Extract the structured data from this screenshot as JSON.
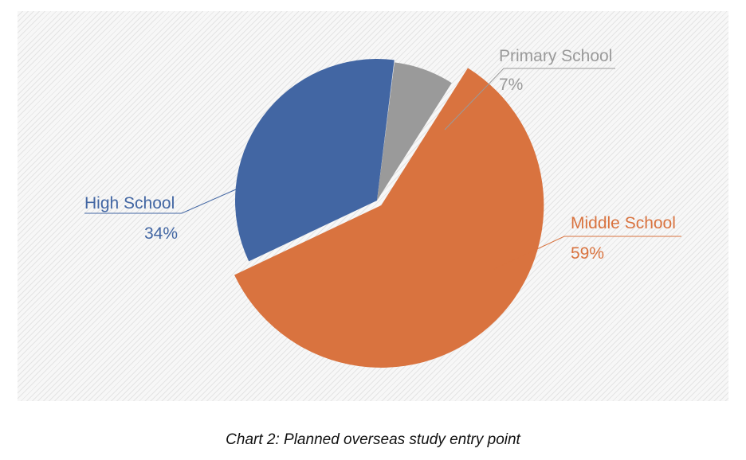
{
  "caption": "Chart 2: Planned overseas study entry point",
  "chart_data": {
    "type": "pie",
    "title": "Chart 2: Planned overseas study entry point",
    "slices": [
      {
        "label": "Middle School",
        "value": 59,
        "value_label": "59%",
        "color": "#d9733f"
      },
      {
        "label": "High School",
        "value": 34,
        "value_label": "34%",
        "color": "#4266a3"
      },
      {
        "label": "Primary School",
        "value": 7,
        "value_label": "7%",
        "color": "#9a9a9a"
      }
    ]
  }
}
